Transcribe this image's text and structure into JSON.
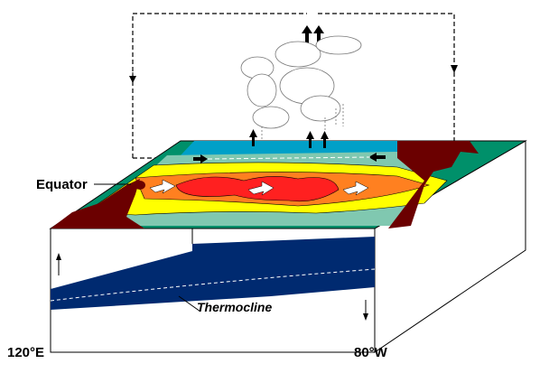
{
  "labels": {
    "equator": "Equator",
    "thermocline": "Thermocline",
    "west_longitude": "120°E",
    "east_longitude": "80°W"
  },
  "colors": {
    "land": "#6b0000",
    "warmest": "#ff2020",
    "warm": "#ff8020",
    "mild": "#ffff00",
    "cool": "#80c8b0",
    "cooler": "#00906a",
    "cold": "#00a0c8",
    "thermocline": "#002a70"
  }
}
